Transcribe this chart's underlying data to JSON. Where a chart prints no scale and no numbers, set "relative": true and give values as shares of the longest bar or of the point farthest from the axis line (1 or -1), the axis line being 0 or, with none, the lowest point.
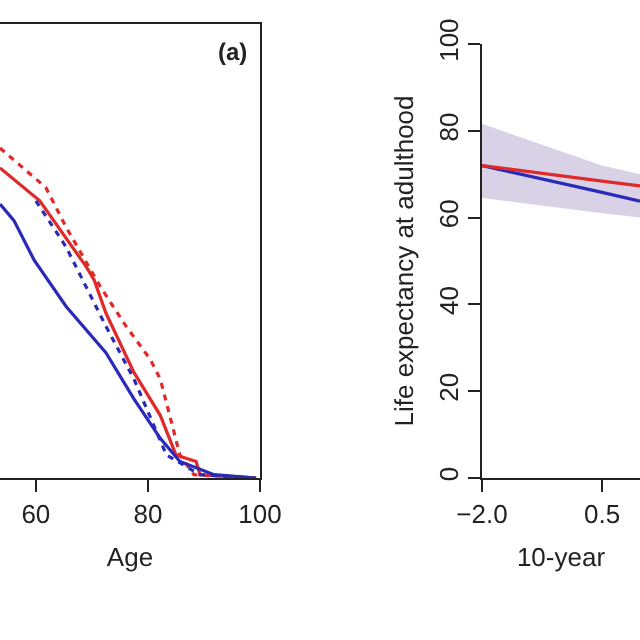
{
  "chart_data": [
    {
      "type": "line",
      "relative": true,
      "xlabel": "Age",
      "annotations": [
        "(a)"
      ],
      "xlim": [
        53.6,
        100
      ],
      "xticks": [
        60,
        80,
        100
      ],
      "grid": false,
      "series": [
        {
          "color": "#e02a2a",
          "line_style": "solid",
          "x": [
            53.6,
            60.7,
            69.0,
            70.4,
            72.5,
            77.5,
            82.2,
            85.0,
            88.6,
            89.3,
            99.3
          ],
          "values": [
            0.94,
            0.84,
            0.64,
            0.6,
            0.5,
            0.32,
            0.19,
            0.07,
            0.05,
            0.01,
            0
          ]
        },
        {
          "color": "#e02a2a",
          "line_style": "dotted",
          "x": [
            53.6,
            61.8,
            65.4,
            71.5,
            76.1,
            80.4,
            82.2,
            85.7,
            88.2,
            99.3
          ],
          "values": [
            1.0,
            0.88,
            0.76,
            0.58,
            0.46,
            0.36,
            0.3,
            0.07,
            0.01,
            0
          ]
        },
        {
          "color": "#2a2ab8",
          "line_style": "solid",
          "x": [
            53.6,
            56.1,
            59.7,
            65.4,
            72.5,
            77.5,
            82.2,
            85.7,
            91.8,
            99.3
          ],
          "values": [
            0.83,
            0.78,
            0.66,
            0.52,
            0.38,
            0.24,
            0.12,
            0.05,
            0.01,
            0
          ]
        },
        {
          "color": "#2a2ab8",
          "line_style": "dotted",
          "x": [
            60.0,
            65.4,
            72.5,
            77.5,
            83.3,
            89.3,
            99.3
          ],
          "values": [
            0.84,
            0.7,
            0.46,
            0.3,
            0.07,
            0.01,
            0
          ]
        }
      ]
    },
    {
      "type": "line",
      "xlabel": "10-year",
      "ylabel": "Life expectancy at adulthood",
      "xlim": [
        -2.0,
        1.29
      ],
      "ylim": [
        0,
        100
      ],
      "xticks": [
        {
          "value": -2.0,
          "label": "−2.0"
        },
        {
          "value": 0.5,
          "label": "0.5"
        }
      ],
      "yticks": [
        0,
        20,
        40,
        60,
        80,
        100
      ],
      "grid": false,
      "series": [
        {
          "color": "#2a2ab8",
          "x": [
            -2.0,
            0.5,
            1.29
          ],
          "values": [
            72,
            65.8,
            63.8
          ],
          "lower": [
            64.5,
            61,
            60
          ],
          "upper": [
            81.6,
            72,
            70
          ]
        },
        {
          "color": "#e02a2a",
          "x": [
            -2.0,
            0.5,
            1.29
          ],
          "values": [
            72,
            68.4,
            67.3
          ]
        }
      ]
    }
  ]
}
